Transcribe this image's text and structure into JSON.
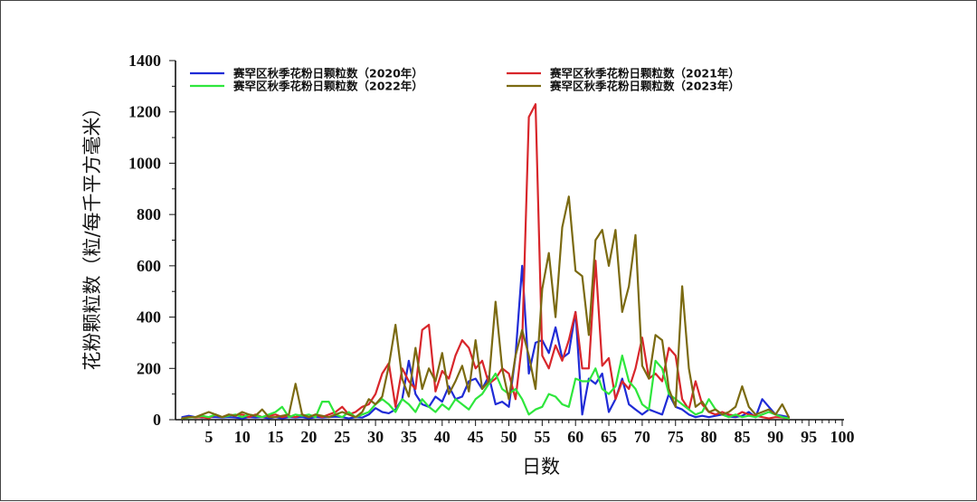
{
  "chart_data": {
    "type": "line",
    "xlabel": "日数",
    "ylabel": "花粉颗粒数（粒/每千平方毫米）",
    "xlim": [
      0,
      100
    ],
    "ylim": [
      0,
      1400
    ],
    "xticks": [
      5,
      10,
      15,
      20,
      25,
      30,
      35,
      40,
      45,
      50,
      55,
      60,
      65,
      70,
      75,
      80,
      85,
      90,
      95,
      100
    ],
    "yticks": [
      0,
      200,
      400,
      600,
      800,
      1000,
      1200,
      1400
    ],
    "grid": false,
    "legend_position": "top",
    "series": [
      {
        "name": "赛罕区秋季花粉日颗粒数（2020年）",
        "color": "#1f2bd6",
        "x": [
          1,
          2,
          3,
          4,
          5,
          6,
          7,
          8,
          9,
          10,
          11,
          12,
          13,
          14,
          15,
          16,
          17,
          18,
          19,
          20,
          21,
          22,
          23,
          24,
          25,
          26,
          27,
          28,
          29,
          30,
          31,
          32,
          33,
          34,
          35,
          36,
          37,
          38,
          39,
          40,
          41,
          42,
          43,
          44,
          45,
          46,
          47,
          48,
          49,
          50,
          51,
          52,
          53,
          54,
          55,
          56,
          57,
          58,
          59,
          60,
          61,
          62,
          63,
          64,
          65,
          66,
          67,
          68,
          69,
          70,
          71,
          72,
          73,
          74,
          75,
          76,
          77,
          78,
          79,
          80,
          81,
          82,
          83,
          84,
          85,
          86,
          87,
          88,
          89,
          90,
          91,
          92
        ],
        "y": [
          10,
          15,
          10,
          8,
          10,
          10,
          8,
          10,
          8,
          5,
          10,
          8,
          10,
          5,
          10,
          5,
          10,
          8,
          10,
          5,
          10,
          8,
          10,
          12,
          10,
          5,
          10,
          8,
          20,
          45,
          30,
          25,
          40,
          80,
          230,
          100,
          60,
          50,
          90,
          70,
          130,
          80,
          90,
          150,
          160,
          120,
          170,
          60,
          70,
          50,
          250,
          600,
          180,
          300,
          310,
          260,
          360,
          240,
          260,
          420,
          20,
          160,
          140,
          180,
          30,
          80,
          160,
          60,
          40,
          20,
          40,
          30,
          20,
          100,
          50,
          40,
          20,
          10,
          15,
          10,
          15,
          20,
          12,
          10,
          15,
          30,
          10,
          80,
          50,
          20,
          15,
          10
        ]
      },
      {
        "name": "赛罕区秋季花粉日颗粒数（2021年）",
        "color": "#d8262b",
        "x": [
          1,
          2,
          3,
          4,
          5,
          6,
          7,
          8,
          9,
          10,
          11,
          12,
          13,
          14,
          15,
          16,
          17,
          18,
          19,
          20,
          21,
          22,
          23,
          24,
          25,
          26,
          27,
          28,
          29,
          30,
          31,
          32,
          33,
          34,
          35,
          36,
          37,
          38,
          39,
          40,
          41,
          42,
          43,
          44,
          45,
          46,
          47,
          48,
          49,
          50,
          51,
          52,
          53,
          54,
          55,
          56,
          57,
          58,
          59,
          60,
          61,
          62,
          63,
          64,
          65,
          66,
          67,
          68,
          69,
          70,
          71,
          72,
          73,
          74,
          75,
          76,
          77,
          78,
          79,
          80,
          81,
          82,
          83,
          84,
          85,
          86,
          87,
          88,
          89,
          90,
          91,
          92
        ],
        "y": [
          5,
          10,
          8,
          10,
          5,
          20,
          10,
          20,
          15,
          20,
          10,
          20,
          10,
          15,
          20,
          10,
          15,
          10,
          20,
          10,
          20,
          10,
          20,
          30,
          50,
          20,
          30,
          50,
          60,
          100,
          180,
          220,
          50,
          200,
          150,
          120,
          350,
          370,
          110,
          190,
          160,
          250,
          310,
          280,
          200,
          230,
          140,
          160,
          200,
          180,
          80,
          300,
          1180,
          1230,
          250,
          200,
          290,
          230,
          310,
          420,
          200,
          200,
          620,
          210,
          240,
          80,
          150,
          120,
          200,
          320,
          160,
          180,
          150,
          280,
          250,
          80,
          40,
          150,
          60,
          30,
          20,
          30,
          20,
          15,
          30,
          20,
          15,
          10,
          5,
          10,
          8,
          5
        ]
      },
      {
        "name": "赛罕区秋季花粉日颗粒数（2022年）",
        "color": "#2ee63c",
        "x": [
          1,
          2,
          3,
          4,
          5,
          6,
          7,
          8,
          9,
          10,
          11,
          12,
          13,
          14,
          15,
          16,
          17,
          18,
          19,
          20,
          21,
          22,
          23,
          24,
          25,
          26,
          27,
          28,
          29,
          30,
          31,
          32,
          33,
          34,
          35,
          36,
          37,
          38,
          39,
          40,
          41,
          42,
          43,
          44,
          45,
          46,
          47,
          48,
          49,
          50,
          51,
          52,
          53,
          54,
          55,
          56,
          57,
          58,
          59,
          60,
          61,
          62,
          63,
          64,
          65,
          66,
          67,
          68,
          69,
          70,
          71,
          72,
          73,
          74,
          75,
          76,
          77,
          78,
          79,
          80,
          81,
          82,
          83,
          84,
          85,
          86,
          87,
          88,
          89,
          90,
          91,
          92
        ],
        "y": [
          5,
          8,
          10,
          15,
          10,
          20,
          10,
          15,
          20,
          10,
          20,
          15,
          10,
          20,
          30,
          50,
          10,
          20,
          15,
          20,
          10,
          70,
          70,
          20,
          10,
          30,
          10,
          20,
          30,
          60,
          80,
          60,
          30,
          80,
          60,
          30,
          80,
          50,
          30,
          60,
          40,
          80,
          60,
          40,
          80,
          100,
          140,
          180,
          120,
          100,
          120,
          80,
          20,
          40,
          50,
          100,
          90,
          60,
          50,
          160,
          150,
          150,
          200,
          120,
          100,
          130,
          250,
          150,
          120,
          60,
          40,
          230,
          200,
          100,
          80,
          60,
          40,
          20,
          30,
          80,
          40,
          20,
          10,
          20,
          10,
          15,
          10,
          20,
          30,
          20,
          10,
          5
        ]
      },
      {
        "name": "赛罕区秋季花粉日颗粒数（2023年）",
        "color": "#7b6a11",
        "x": [
          1,
          2,
          3,
          4,
          5,
          6,
          7,
          8,
          9,
          10,
          11,
          12,
          13,
          14,
          15,
          16,
          17,
          18,
          19,
          20,
          21,
          22,
          23,
          24,
          25,
          26,
          27,
          28,
          29,
          30,
          31,
          32,
          33,
          34,
          35,
          36,
          37,
          38,
          39,
          40,
          41,
          42,
          43,
          44,
          45,
          46,
          47,
          48,
          49,
          50,
          51,
          52,
          53,
          54,
          55,
          56,
          57,
          58,
          59,
          60,
          61,
          62,
          63,
          64,
          65,
          66,
          67,
          68,
          69,
          70,
          71,
          72,
          73,
          74,
          75,
          76,
          77,
          78,
          79,
          80,
          81,
          82,
          83,
          84,
          85,
          86,
          87,
          88,
          89,
          90,
          91,
          92
        ],
        "y": [
          5,
          10,
          10,
          20,
          30,
          20,
          10,
          20,
          15,
          30,
          20,
          15,
          40,
          10,
          10,
          15,
          20,
          140,
          20,
          10,
          20,
          15,
          10,
          20,
          30,
          20,
          10,
          30,
          80,
          60,
          90,
          210,
          370,
          160,
          90,
          280,
          120,
          200,
          150,
          260,
          100,
          150,
          210,
          110,
          310,
          120,
          150,
          460,
          200,
          80,
          250,
          350,
          250,
          120,
          510,
          650,
          400,
          750,
          870,
          580,
          560,
          330,
          700,
          740,
          600,
          740,
          420,
          520,
          720,
          210,
          160,
          330,
          310,
          120,
          50,
          520,
          200,
          50,
          70,
          30,
          40,
          20,
          30,
          50,
          130,
          50,
          20,
          30,
          40,
          20,
          60,
          10
        ]
      }
    ]
  }
}
